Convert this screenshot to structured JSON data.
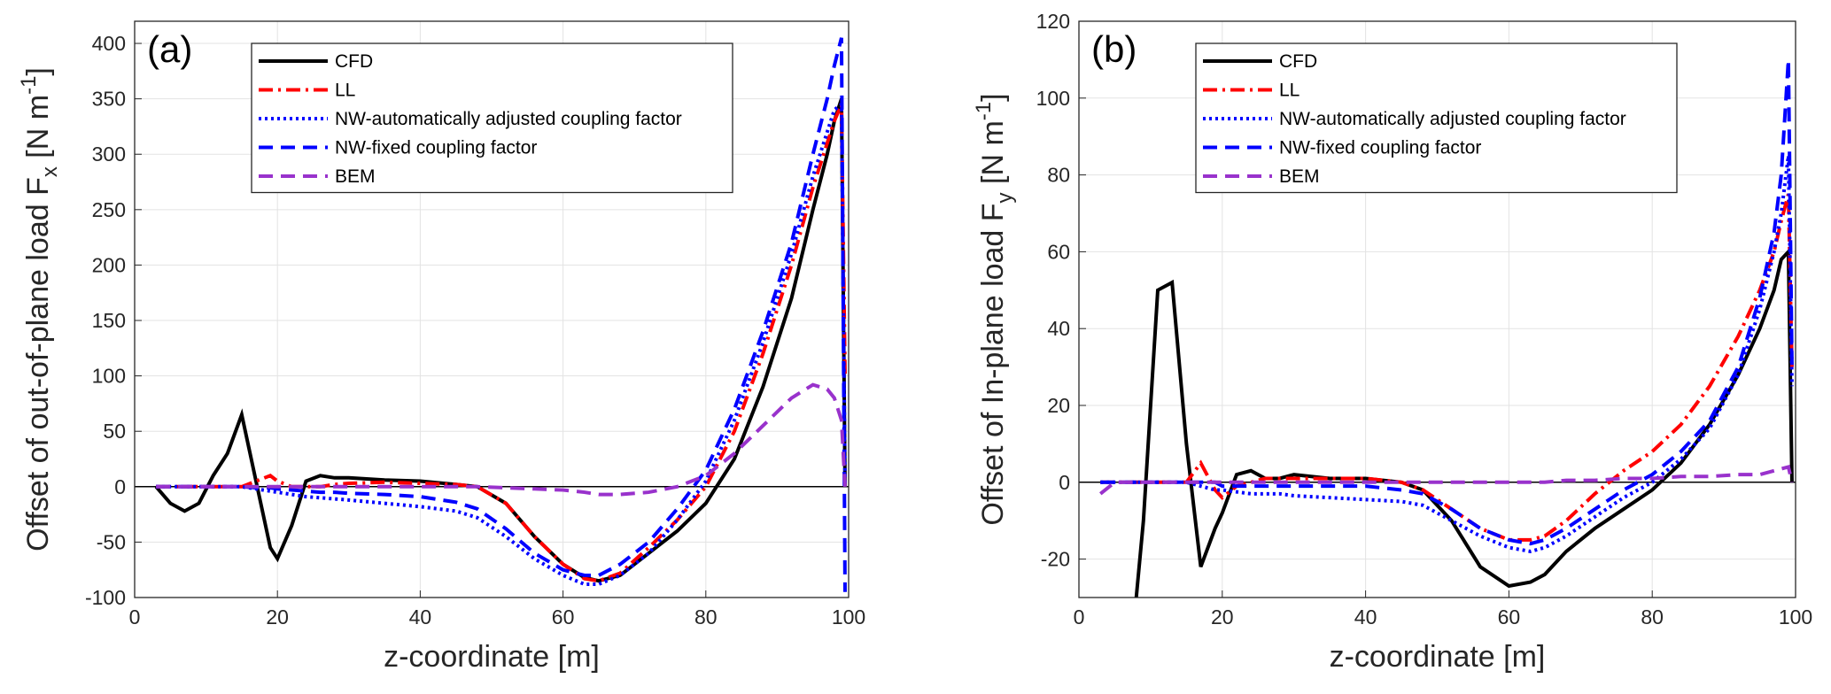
{
  "chart_data": [
    {
      "type": "line",
      "panel_label": "(a)",
      "xlabel": "z-coordinate [m]",
      "ylabel": {
        "text": "Offset of out-of-plane load F",
        "sub": "x",
        "unit": " [N m",
        "sup": "-1",
        "close": "]"
      },
      "xlim": [
        0,
        100
      ],
      "xticks": [
        0,
        20,
        40,
        60,
        80,
        100
      ],
      "ylim": [
        -100,
        420
      ],
      "yticks": [
        -100,
        -50,
        0,
        50,
        100,
        150,
        200,
        250,
        300,
        350,
        400
      ],
      "grid": true,
      "legend": "upper left",
      "x": [
        3,
        5,
        7,
        9,
        11,
        13,
        15,
        17,
        19,
        20,
        22,
        24,
        26,
        28,
        30,
        35,
        40,
        45,
        48,
        52,
        56,
        60,
        63,
        65,
        68,
        72,
        76,
        80,
        84,
        88,
        92,
        95,
        97,
        98,
        99,
        99.5
      ],
      "series": [
        {
          "name": "CFD",
          "color": "#000000",
          "style": "solid",
          "values": [
            0,
            -15,
            -22,
            -15,
            10,
            30,
            65,
            5,
            -55,
            -65,
            -35,
            5,
            10,
            8,
            8,
            6,
            5,
            2,
            0,
            -15,
            -45,
            -70,
            -82,
            -85,
            -80,
            -60,
            -40,
            -15,
            25,
            90,
            170,
            250,
            300,
            330,
            350,
            0
          ]
        },
        {
          "name": "LL",
          "color": "#ff0000",
          "style": "dashdot",
          "values": [
            0,
            0,
            0,
            0,
            0,
            0,
            0,
            5,
            10,
            5,
            0,
            0,
            0,
            2,
            3,
            4,
            3,
            2,
            0,
            -15,
            -45,
            -70,
            -83,
            -85,
            -78,
            -55,
            -30,
            0,
            50,
            120,
            200,
            270,
            310,
            330,
            345,
            100
          ]
        },
        {
          "name": "NW-automatically adjusted coupling factor",
          "color": "#0000ff",
          "style": "dotted",
          "values": [
            0,
            0,
            0,
            0,
            0,
            0,
            0,
            -2,
            -4,
            -5,
            -7,
            -9,
            -10,
            -11,
            -12,
            -15,
            -18,
            -22,
            -28,
            -45,
            -65,
            -80,
            -88,
            -88,
            -80,
            -60,
            -30,
            5,
            60,
            130,
            210,
            280,
            320,
            340,
            345,
            0
          ]
        },
        {
          "name": "NW-fixed coupling factor",
          "color": "#0000ff",
          "style": "dashed",
          "values": [
            0,
            0,
            0,
            0,
            0,
            0,
            0,
            -1,
            -1,
            -2,
            -3,
            -4,
            -5,
            -5,
            -6,
            -7,
            -9,
            -14,
            -20,
            -38,
            -60,
            -75,
            -80,
            -80,
            -70,
            -50,
            -20,
            15,
            70,
            140,
            220,
            300,
            350,
            380,
            405,
            -95
          ]
        },
        {
          "name": "BEM",
          "color": "#9932cc",
          "style": "dashed",
          "values": [
            0,
            0,
            0,
            0,
            0,
            0,
            0,
            0,
            0,
            0,
            0,
            0,
            0,
            0,
            0,
            0,
            0,
            0,
            0,
            -1,
            -2,
            -3,
            -5,
            -7,
            -7,
            -5,
            0,
            10,
            30,
            55,
            80,
            92,
            88,
            80,
            60,
            0
          ]
        }
      ]
    },
    {
      "type": "line",
      "panel_label": "(b)",
      "xlabel": "z-coordinate [m]",
      "ylabel": {
        "text": "Offset of In-plane load F",
        "sub": "y",
        "unit": " [N m",
        "sup": "-1",
        "close": "]"
      },
      "xlim": [
        0,
        100
      ],
      "xticks": [
        0,
        20,
        40,
        60,
        80,
        100
      ],
      "ylim": [
        -30,
        120
      ],
      "yticks": [
        -20,
        0,
        20,
        40,
        60,
        80,
        100,
        120
      ],
      "grid": true,
      "legend": "upper left",
      "x": [
        3,
        5,
        7,
        9,
        11,
        13,
        15,
        17,
        19,
        20,
        22,
        24,
        26,
        28,
        30,
        35,
        40,
        45,
        48,
        52,
        56,
        60,
        63,
        65,
        68,
        72,
        76,
        80,
        84,
        88,
        92,
        95,
        97,
        98,
        99,
        99.5
      ],
      "series": [
        {
          "name": "CFD",
          "color": "#000000",
          "style": "solid",
          "values": [
            null,
            null,
            -50,
            -10,
            50,
            52,
            10,
            -22,
            -12,
            -8,
            2,
            3,
            1,
            1,
            2,
            1,
            1,
            0,
            -2,
            -10,
            -22,
            -27,
            -26,
            -24,
            -18,
            -12,
            -7,
            -2,
            5,
            15,
            28,
            40,
            50,
            58,
            60,
            0
          ]
        },
        {
          "name": "LL",
          "color": "#ff0000",
          "style": "dashdot",
          "values": [
            0,
            0,
            0,
            0,
            0,
            0,
            0,
            5,
            -2,
            -4,
            -1,
            0,
            1,
            1,
            1,
            1,
            1,
            0,
            -2,
            -7,
            -12,
            -15,
            -15,
            -14,
            -10,
            -3,
            3,
            8,
            15,
            25,
            38,
            50,
            60,
            68,
            75,
            30
          ]
        },
        {
          "name": "NW-automatically adjusted coupling factor",
          "color": "#0000ff",
          "style": "dotted",
          "values": [
            0,
            0,
            0,
            0,
            0,
            0,
            0,
            -1,
            -2,
            -2,
            -2.5,
            -3,
            -3,
            -3,
            -3.5,
            -4,
            -4.5,
            -5,
            -6,
            -10,
            -14,
            -17,
            -18,
            -17,
            -14,
            -9,
            -4,
            0,
            6,
            14,
            28,
            45,
            60,
            70,
            85,
            25
          ]
        },
        {
          "name": "NW-fixed coupling factor",
          "color": "#0000ff",
          "style": "dashed",
          "values": [
            0,
            0,
            0,
            0,
            0,
            0,
            0,
            0,
            0,
            -1,
            -1,
            -1,
            -1,
            -1,
            -1,
            -1,
            -1,
            -2,
            -3,
            -7,
            -12,
            -15,
            -16,
            -15,
            -12,
            -7,
            -2,
            2,
            8,
            16,
            30,
            48,
            65,
            80,
            110,
            30
          ]
        },
        {
          "name": "BEM",
          "color": "#9932cc",
          "style": "dashed",
          "values": [
            -3,
            0,
            0,
            0,
            0,
            0,
            0,
            0,
            0,
            0,
            0,
            0,
            0,
            0,
            0,
            0,
            0,
            0,
            0,
            0,
            0,
            0,
            0,
            0,
            0.5,
            0.5,
            1,
            1,
            1.5,
            1.5,
            2,
            2,
            3,
            3.5,
            4,
            0
          ]
        }
      ]
    }
  ]
}
